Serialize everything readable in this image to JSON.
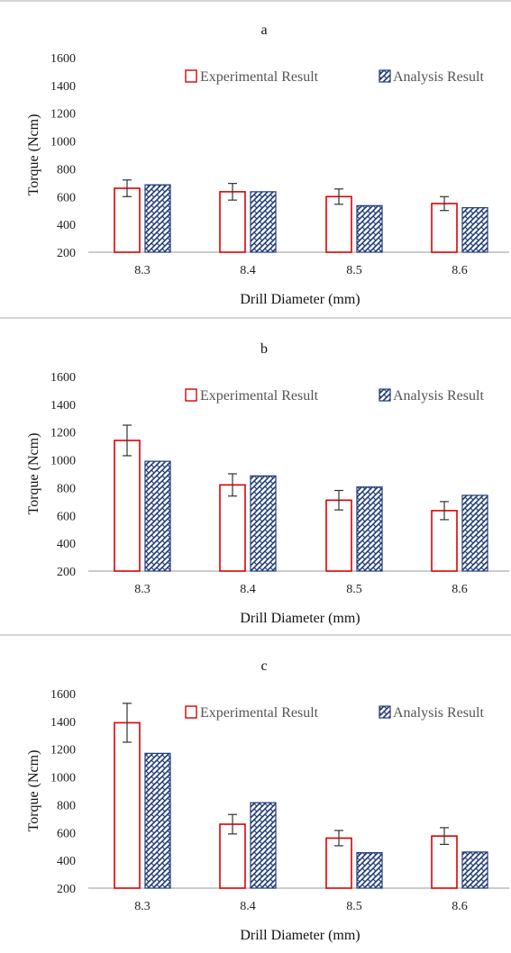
{
  "colors": {
    "experimental_edge": "#e00000",
    "analysis_fill": "#1f3a78",
    "analysis_bg": "#ffffff",
    "axis": "#9a9a9a",
    "errorbar": "#333333",
    "separator": "#d4d4d4"
  },
  "chart_data": [
    {
      "type": "bar",
      "title": "a",
      "xlabel": "Drill Diameter (mm)",
      "ylabel": "Torque (Ncm)",
      "ylim": [
        200,
        1600
      ],
      "yticks": [
        200,
        400,
        600,
        800,
        1000,
        1200,
        1400,
        1600
      ],
      "categories": [
        "8.3",
        "8.4",
        "8.5",
        "8.6"
      ],
      "legend": "top-right",
      "series": [
        {
          "name": "Experimental Result",
          "values": [
            660,
            635,
            600,
            550
          ],
          "error": [
            60,
            60,
            55,
            50
          ]
        },
        {
          "name": "Analysis Result",
          "values": [
            685,
            635,
            535,
            520
          ]
        }
      ]
    },
    {
      "type": "bar",
      "title": "b",
      "xlabel": "Drill Diameter (mm)",
      "ylabel": "Torque (Ncm)",
      "ylim": [
        200,
        1600
      ],
      "yticks": [
        200,
        400,
        600,
        800,
        1000,
        1200,
        1400,
        1600
      ],
      "categories": [
        "8.3",
        "8.4",
        "8.5",
        "8.6"
      ],
      "legend": "top-right",
      "series": [
        {
          "name": "Experimental Result",
          "values": [
            1140,
            820,
            710,
            635
          ],
          "error": [
            110,
            80,
            70,
            65
          ]
        },
        {
          "name": "Analysis Result",
          "values": [
            990,
            885,
            805,
            745
          ]
        }
      ]
    },
    {
      "type": "bar",
      "title": "c",
      "xlabel": "Drill Diameter (mm)",
      "ylabel": "Torque (Ncm)",
      "ylim": [
        200,
        1600
      ],
      "yticks": [
        200,
        400,
        600,
        800,
        1000,
        1200,
        1400,
        1600
      ],
      "categories": [
        "8.3",
        "8.4",
        "8.5",
        "8.6"
      ],
      "legend": "top-right",
      "series": [
        {
          "name": "Experimental Result",
          "values": [
            1390,
            660,
            560,
            575
          ],
          "error": [
            140,
            70,
            55,
            60
          ]
        },
        {
          "name": "Analysis Result",
          "values": [
            1170,
            815,
            455,
            460
          ]
        }
      ]
    }
  ]
}
